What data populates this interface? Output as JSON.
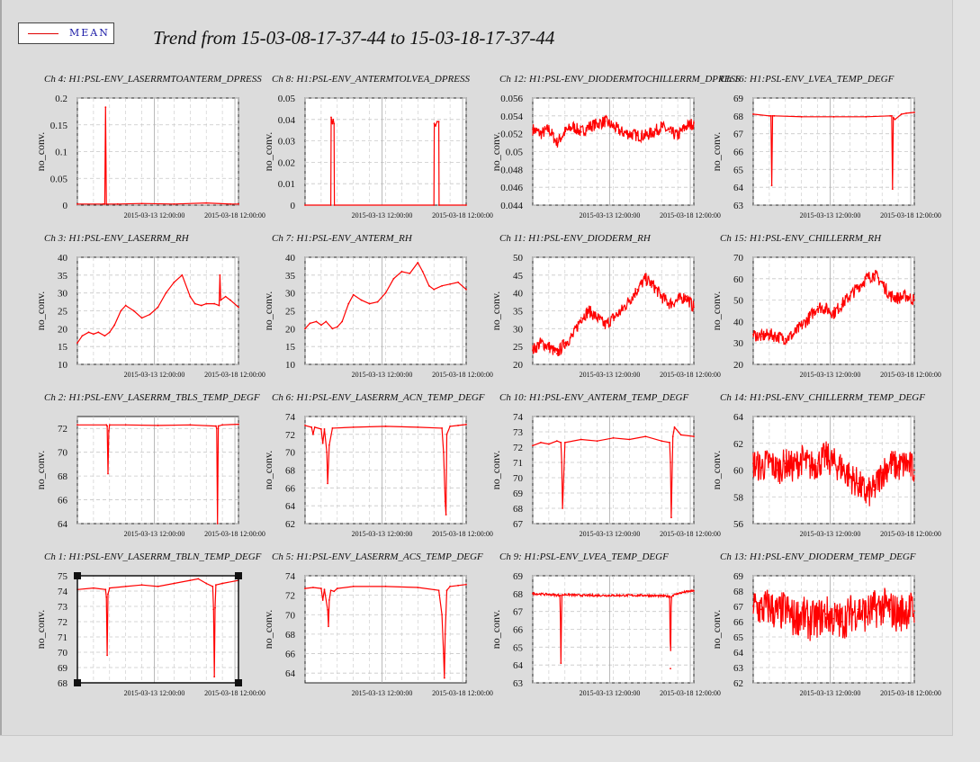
{
  "legend": {
    "label": "MEAN",
    "line_color": "#e00000"
  },
  "title": "Trend from 15-03-08-17-37-44 to 15-03-18-17-37-44",
  "colors": {
    "series": "#ff0000",
    "grid": "#c8c8c8",
    "panel_bg": "#ffffff",
    "page_bg": "#dcdcdc"
  },
  "chart_data": [
    {
      "type": "line",
      "title": "Ch 4: H1:PSL-ENV_LASERRMTOANTERM_DPRESS",
      "ylabel": "no_conv.",
      "ylim": [
        0,
        0.2
      ],
      "yticks": [
        "0",
        "0.05",
        "0.1",
        "0.15",
        "0.2"
      ],
      "xticks": [
        "2015-03-13 12:00:00",
        "2015-03-18 12:00:00"
      ],
      "xlim": [
        0,
        10
      ],
      "series": [
        {
          "x": [
            0,
            1.6,
            1.7,
            1.75,
            1.8,
            2.5,
            4,
            6,
            8,
            9.5,
            10
          ],
          "values": [
            0.002,
            0.002,
            0.002,
            0.183,
            0.002,
            0.002,
            0.003,
            0.002,
            0.004,
            0.002,
            0.002
          ]
        }
      ]
    },
    {
      "type": "line",
      "title": "Ch 8: H1:PSL-ENV_ANTERMTOLVEA_DPRESS",
      "ylabel": "no_conv.",
      "ylim": [
        0,
        0.05
      ],
      "yticks": [
        "0",
        "0.01",
        "0.02",
        "0.03",
        "0.04",
        "0.05"
      ],
      "xticks": [
        "2015-03-13 12:00:00",
        "2015-03-18 12:00:00"
      ],
      "xlim": [
        0,
        10
      ],
      "series": [
        {
          "x": [
            0,
            1.6,
            1.62,
            1.7,
            1.75,
            1.8,
            1.82,
            8.0,
            8.02,
            8.1,
            8.2,
            8.3,
            8.32,
            10
          ],
          "values": [
            0,
            0,
            0.041,
            0.038,
            0.04,
            0.038,
            0,
            0,
            0.038,
            0.037,
            0.039,
            0.039,
            0,
            0
          ]
        }
      ]
    },
    {
      "type": "line",
      "title": "Ch 12: H1:PSL-ENV_DIODERMTOCHILLERRM_DPRESS",
      "ylabel": "no_conv.",
      "ylim": [
        0.044,
        0.056
      ],
      "yticks": [
        "0.044",
        "0.046",
        "0.048",
        "0.05",
        "0.052",
        "0.054",
        "0.056"
      ],
      "xticks": [
        "2015-03-13 12:00:00",
        "2015-03-18 12:00:00"
      ],
      "xlim": [
        0,
        10
      ],
      "series": [
        {
          "x": [
            0,
            0.5,
            1,
            1.5,
            2,
            2.5,
            3,
            3.5,
            4,
            4.5,
            5,
            5.5,
            6,
            6.5,
            7,
            7.5,
            8,
            8.5,
            9,
            9.5,
            10
          ],
          "values": [
            0.0525,
            0.052,
            0.0525,
            0.051,
            0.0522,
            0.0528,
            0.0522,
            0.0528,
            0.0531,
            0.0534,
            0.0528,
            0.0522,
            0.052,
            0.0518,
            0.0518,
            0.0522,
            0.0528,
            0.0522,
            0.0518,
            0.0528,
            0.0532
          ],
          "spread": 0.0014
        }
      ]
    },
    {
      "type": "line",
      "title": "Ch 16: H1:PSL-ENV_LVEA_TEMP_DEGF",
      "ylabel": "no_conv.",
      "ylim": [
        63,
        69
      ],
      "yticks": [
        "63",
        "64",
        "65",
        "66",
        "67",
        "68",
        "69"
      ],
      "xticks": [
        "2015-03-13 12:00:00",
        "2015-03-18 12:00:00"
      ],
      "xlim": [
        0,
        10
      ],
      "series": [
        {
          "x": [
            0,
            1.0,
            1.1,
            1.15,
            1.2,
            1.3,
            3,
            5,
            7,
            8.5,
            8.6,
            8.65,
            8.7,
            8.8,
            9.2,
            9.5,
            10
          ],
          "values": [
            68.1,
            68.0,
            68.0,
            64.1,
            68.0,
            68.0,
            67.95,
            67.95,
            67.95,
            68.0,
            68.0,
            63.9,
            67.9,
            67.8,
            68.1,
            68.15,
            68.2
          ]
        }
      ]
    },
    {
      "type": "line",
      "title": "Ch 3: H1:PSL-ENV_LASERRM_RH",
      "ylabel": "no_conv.",
      "ylim": [
        10,
        40
      ],
      "yticks": [
        "10",
        "15",
        "20",
        "25",
        "30",
        "35",
        "40"
      ],
      "xticks": [
        "2015-03-13 12:00:00",
        "2015-03-18 12:00:00"
      ],
      "xlim": [
        0,
        10
      ],
      "series": [
        {
          "x": [
            0,
            0.3,
            0.7,
            1.0,
            1.3,
            1.7,
            2.0,
            2.3,
            2.7,
            3.0,
            3.5,
            4.0,
            4.5,
            5.0,
            5.5,
            6.0,
            6.5,
            7.0,
            7.3,
            7.7,
            8.0,
            8.5,
            8.8,
            8.85,
            8.9,
            9.2,
            9.5,
            10
          ],
          "values": [
            16,
            18,
            19,
            18.5,
            19,
            18,
            19,
            21,
            25,
            26.5,
            25,
            23,
            24,
            26,
            30,
            33,
            35,
            29,
            27,
            26.5,
            27,
            27,
            26.5,
            35,
            28,
            29,
            28,
            26
          ]
        }
      ]
    },
    {
      "type": "line",
      "title": "Ch 7: H1:PSL-ENV_ANTERM_RH",
      "ylabel": "no_conv.",
      "ylim": [
        10,
        40
      ],
      "yticks": [
        "10",
        "15",
        "20",
        "25",
        "30",
        "35",
        "40"
      ],
      "xticks": [
        "2015-03-13 12:00:00",
        "2015-03-18 12:00:00"
      ],
      "xlim": [
        0,
        10
      ],
      "series": [
        {
          "x": [
            0,
            0.3,
            0.7,
            1.0,
            1.3,
            1.7,
            2.0,
            2.3,
            2.7,
            3.0,
            3.5,
            4.0,
            4.5,
            5.0,
            5.5,
            6.0,
            6.5,
            7.0,
            7.3,
            7.7,
            8.0,
            8.5,
            9.0,
            9.5,
            10
          ],
          "values": [
            20,
            21.5,
            22,
            21,
            22,
            20,
            20.5,
            22,
            27,
            29.5,
            28,
            27,
            27.5,
            30,
            34,
            36,
            35.5,
            38.5,
            36,
            32,
            31,
            32,
            32.5,
            33,
            31
          ]
        }
      ]
    },
    {
      "type": "line",
      "title": "Ch 11: H1:PSL-ENV_DIODERM_RH",
      "ylabel": "no_conv.",
      "ylim": [
        20,
        50
      ],
      "yticks": [
        "20",
        "25",
        "30",
        "35",
        "40",
        "45",
        "50"
      ],
      "xticks": [
        "2015-03-13 12:00:00",
        "2015-03-18 12:00:00"
      ],
      "xlim": [
        0,
        10
      ],
      "series": [
        {
          "x": [
            0,
            0.5,
            1,
            1.5,
            2,
            2.5,
            3,
            3.5,
            4,
            4.5,
            5,
            5.5,
            6,
            6.5,
            7,
            7.5,
            8,
            8.5,
            9,
            9.5,
            10
          ],
          "values": [
            24,
            26,
            25,
            23,
            26,
            28,
            33,
            35,
            33,
            31,
            33,
            35,
            38,
            41,
            44,
            42,
            39,
            37,
            38,
            39,
            36
          ],
          "spread": 3.5
        }
      ]
    },
    {
      "type": "line",
      "title": "Ch 15: H1:PSL-ENV_CHILLERRM_RH",
      "ylabel": "no_conv.",
      "ylim": [
        20,
        70
      ],
      "yticks": [
        "20",
        "30",
        "40",
        "50",
        "60",
        "70"
      ],
      "xticks": [
        "2015-03-13 12:00:00",
        "2015-03-18 12:00:00"
      ],
      "xlim": [
        0,
        10
      ],
      "series": [
        {
          "x": [
            0,
            0.5,
            1,
            1.5,
            2,
            2.5,
            3,
            3.5,
            4,
            4.5,
            5,
            5.5,
            6,
            6.5,
            7,
            7.5,
            8,
            8.5,
            9,
            9.5,
            10
          ],
          "values": [
            34,
            33,
            34,
            33,
            32,
            34,
            38,
            42,
            47,
            46,
            44,
            48,
            52,
            56,
            60,
            62,
            58,
            52,
            51,
            52,
            50
          ],
          "spread": 6
        }
      ]
    },
    {
      "type": "line",
      "title": "Ch 2: H1:PSL-ENV_LASERRM_TBLS_TEMP_DEGF",
      "ylabel": "no_conv.",
      "ylim": [
        64,
        73
      ],
      "yticks": [
        "64",
        "66",
        "68",
        "70",
        "72"
      ],
      "xticks": [
        "2015-03-13 12:00:00",
        "2015-03-18 12:00:00"
      ],
      "xlim": [
        0,
        10
      ],
      "series": [
        {
          "x": [
            0,
            1.8,
            1.85,
            1.9,
            1.95,
            2.0,
            3,
            5,
            7,
            8.6,
            8.65,
            8.7,
            8.75,
            9.0,
            10
          ],
          "values": [
            72.3,
            72.3,
            72.2,
            68.2,
            71.8,
            72.3,
            72.3,
            72.25,
            72.3,
            72.2,
            72.0,
            64.0,
            72.2,
            72.3,
            72.35
          ]
        }
      ]
    },
    {
      "type": "line",
      "title": "Ch 6: H1:PSL-ENV_LASERRM_ACN_TEMP_DEGF",
      "ylabel": "no_conv.",
      "ylim": [
        62,
        74
      ],
      "yticks": [
        "62",
        "64",
        "66",
        "68",
        "70",
        "72",
        "74"
      ],
      "xticks": [
        "2015-03-13 12:00:00",
        "2015-03-18 12:00:00"
      ],
      "xlim": [
        0,
        10
      ],
      "series": [
        {
          "x": [
            0,
            0.4,
            0.5,
            0.6,
            1.0,
            1.1,
            1.2,
            1.35,
            1.4,
            1.5,
            1.7,
            3,
            5,
            7,
            8.5,
            8.6,
            8.7,
            8.75,
            8.8,
            9.0,
            9.5,
            10
          ],
          "values": [
            73.0,
            72.8,
            72.0,
            72.8,
            72.6,
            71.0,
            72.6,
            70.0,
            66.5,
            70.8,
            72.7,
            72.8,
            72.9,
            72.8,
            72.7,
            70.0,
            64.5,
            63.0,
            72.0,
            72.9,
            73.0,
            73.1
          ]
        }
      ]
    },
    {
      "type": "line",
      "title": "Ch 10: H1:PSL-ENV_ANTERM_TEMP_DEGF",
      "ylabel": "no_conv.",
      "ylim": [
        67,
        74
      ],
      "yticks": [
        "67",
        "68",
        "69",
        "70",
        "71",
        "72",
        "73",
        "74"
      ],
      "xticks": [
        "2015-03-13 12:00:00",
        "2015-03-18 12:00:00"
      ],
      "xlim": [
        0,
        10
      ],
      "series": [
        {
          "x": [
            0,
            0.5,
            1.0,
            1.5,
            1.75,
            1.8,
            1.85,
            2.0,
            3,
            4,
            5,
            6,
            7,
            8,
            8.5,
            8.55,
            8.6,
            8.7,
            8.8,
            9.2,
            10
          ],
          "values": [
            72.1,
            72.3,
            72.2,
            72.4,
            72.3,
            71.0,
            68.0,
            72.3,
            72.5,
            72.4,
            72.6,
            72.5,
            72.7,
            72.4,
            72.3,
            71.0,
            67.4,
            72.7,
            73.3,
            72.8,
            72.7
          ]
        }
      ]
    },
    {
      "type": "line",
      "title": "Ch 14: H1:PSL-ENV_CHILLERRM_TEMP_DEGF",
      "ylabel": "no_conv.",
      "ylim": [
        56,
        64
      ],
      "yticks": [
        "56",
        "58",
        "60",
        "62",
        "64"
      ],
      "xticks": [
        "2015-03-13 12:00:00",
        "2015-03-18 12:00:00"
      ],
      "xlim": [
        0,
        10
      ],
      "series": [
        {
          "x": [
            0,
            0.5,
            1,
            1.5,
            2,
            2.5,
            3,
            3.5,
            4,
            4.5,
            5,
            5.5,
            6,
            6.5,
            7,
            7.5,
            8,
            8.5,
            9,
            9.5,
            10
          ],
          "values": [
            60.5,
            60.2,
            60.6,
            60.0,
            60.5,
            60.2,
            60.8,
            60.3,
            60.5,
            61.0,
            60.5,
            60.2,
            59.5,
            59.0,
            58.2,
            58.5,
            59.8,
            60.5,
            60.2,
            60.5,
            60.0
          ],
          "spread": 2.4
        }
      ]
    },
    {
      "type": "line",
      "title": "Ch 1: H1:PSL-ENV_LASERRM_TBLN_TEMP_DEGF",
      "ylabel": "no_conv.",
      "ylim": [
        68,
        75
      ],
      "yticks": [
        "68",
        "69",
        "70",
        "71",
        "72",
        "73",
        "74",
        "75"
      ],
      "xticks": [
        "2015-03-13 12:00:00",
        "2015-03-18 12:00:00"
      ],
      "xlim": [
        0,
        10
      ],
      "series": [
        {
          "x": [
            0,
            1.0,
            1.75,
            1.8,
            1.85,
            1.9,
            2.0,
            3,
            4,
            5,
            6,
            7,
            7.5,
            8,
            8.4,
            8.45,
            8.5,
            8.55,
            8.6,
            9,
            10
          ],
          "values": [
            74.1,
            74.2,
            74.1,
            73.6,
            69.8,
            73.8,
            74.2,
            74.3,
            74.4,
            74.3,
            74.5,
            74.7,
            74.8,
            74.5,
            74.3,
            72.8,
            68.4,
            72.9,
            74.4,
            74.5,
            74.7
          ]
        }
      ]
    },
    {
      "type": "line",
      "title": "Ch 5: H1:PSL-ENV_LASERRM_ACS_TEMP_DEGF",
      "ylabel": "no_conv.",
      "ylim": [
        63,
        74
      ],
      "yticks": [
        "64",
        "66",
        "68",
        "70",
        "72",
        "74"
      ],
      "xticks": [
        "2015-03-13 12:00:00",
        "2015-03-18 12:00:00"
      ],
      "xlim": [
        0,
        10
      ],
      "series": [
        {
          "x": [
            0,
            0.5,
            1.0,
            1.1,
            1.2,
            1.4,
            1.45,
            1.5,
            1.6,
            1.8,
            2.0,
            3,
            5,
            7,
            8.3,
            8.5,
            8.6,
            8.65,
            8.7,
            8.8,
            9.0,
            9.5,
            10
          ],
          "values": [
            72.7,
            72.8,
            72.7,
            71.5,
            72.6,
            70.5,
            68.8,
            71.5,
            72.5,
            72.4,
            72.7,
            72.9,
            72.9,
            72.8,
            72.5,
            70.0,
            66.0,
            63.5,
            68.0,
            72.5,
            72.9,
            73.0,
            73.1
          ]
        }
      ]
    },
    {
      "type": "line",
      "title": "Ch 9: H1:PSL-ENV_LVEA_TEMP_DEGF",
      "ylabel": "no_conv.",
      "ylim": [
        63,
        69
      ],
      "yticks": [
        "63",
        "64",
        "65",
        "66",
        "67",
        "68",
        "69"
      ],
      "xticks": [
        "2015-03-13 12:00:00",
        "2015-03-18 12:00:00"
      ],
      "xlim": [
        0,
        10
      ],
      "series": [
        {
          "x": [
            0,
            1.0,
            1.7,
            1.75,
            1.8,
            2.0,
            3,
            5,
            7,
            8.5,
            8.55,
            8.6,
            8.7,
            9.0,
            9.5,
            10
          ],
          "values": [
            68.0,
            67.95,
            67.9,
            64.1,
            67.9,
            67.95,
            67.9,
            67.9,
            67.9,
            67.85,
            63.8,
            67.8,
            67.9,
            68.0,
            68.1,
            68.15
          ],
          "spread": 0.12
        }
      ]
    },
    {
      "type": "line",
      "title": "Ch 13: H1:PSL-ENV_DIODERM_TEMP_DEGF",
      "ylabel": "no_conv.",
      "ylim": [
        62,
        69
      ],
      "yticks": [
        "62",
        "63",
        "64",
        "65",
        "66",
        "67",
        "68",
        "69"
      ],
      "xticks": [
        "2015-03-13 12:00:00",
        "2015-03-18 12:00:00"
      ],
      "xlim": [
        0,
        10
      ],
      "series": [
        {
          "x": [
            0,
            0.5,
            1,
            1.5,
            2,
            2.5,
            3,
            3.5,
            4,
            4.5,
            5,
            5.5,
            6,
            6.5,
            7,
            7.5,
            8,
            8.5,
            9,
            9.5,
            10
          ],
          "values": [
            67.0,
            66.8,
            67.0,
            66.5,
            66.8,
            66.2,
            66.5,
            66.0,
            66.2,
            66.5,
            66.2,
            66.0,
            66.5,
            66.8,
            66.5,
            66.8,
            67.0,
            66.8,
            66.5,
            66.8,
            66.7
          ],
          "spread": 2.6
        }
      ]
    }
  ]
}
